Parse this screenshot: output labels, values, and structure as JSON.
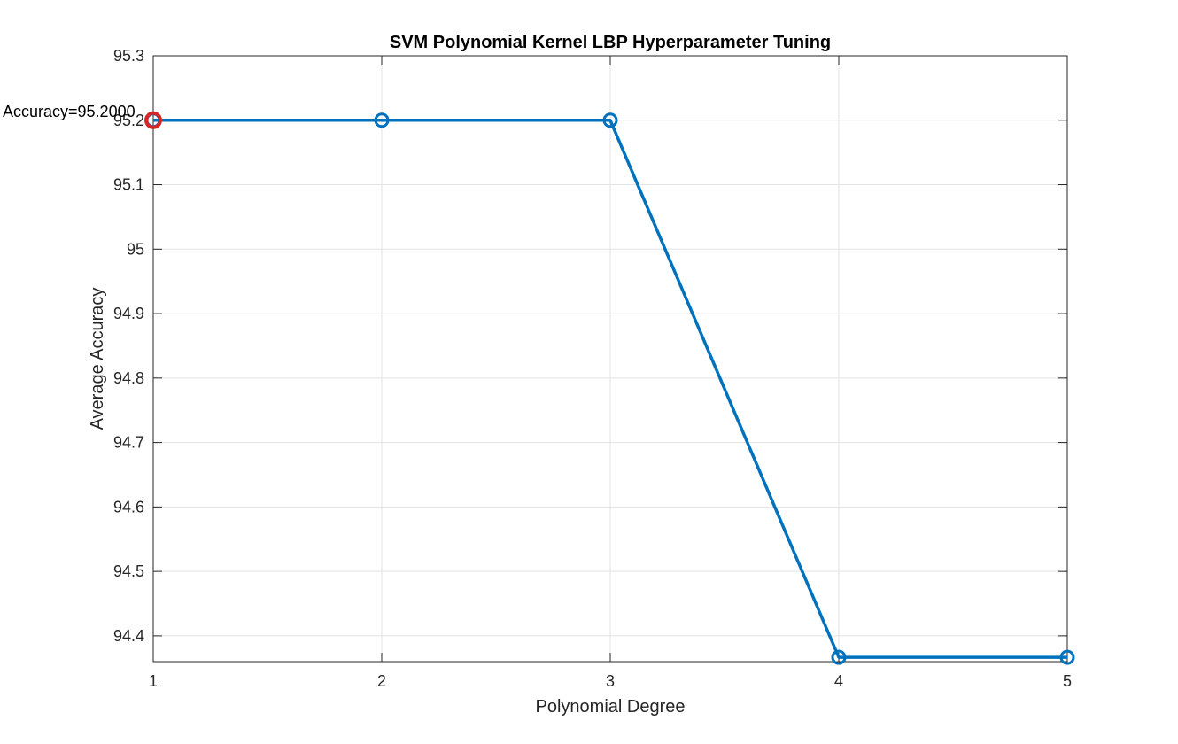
{
  "chart_data": {
    "type": "line",
    "title": "SVM Polynomial Kernel LBP Hyperparameter Tuning",
    "xlabel": "Polynomial Degree",
    "ylabel": "Average Accuracy",
    "x": [
      1,
      2,
      3,
      4,
      5
    ],
    "y": [
      95.2,
      95.2,
      95.2,
      94.3667,
      94.3667
    ],
    "xlim": [
      1,
      5
    ],
    "ylim": [
      94.36,
      95.3
    ],
    "xticks": [
      1,
      2,
      3,
      4,
      5
    ],
    "xtick_labels": [
      "1",
      "2",
      "3",
      "4",
      "5"
    ],
    "yticks": [
      94.4,
      94.5,
      94.6,
      94.7,
      94.8,
      94.9,
      95.0,
      95.1,
      95.2,
      95.3
    ],
    "ytick_labels": [
      "94.4",
      "94.5",
      "94.6",
      "94.7",
      "94.8",
      "94.9",
      "95",
      "95.1",
      "95.2",
      "95.3"
    ],
    "grid": true,
    "marker": "circle",
    "line_color": "#0072BD",
    "highlight": {
      "x": 1,
      "y": 95.2,
      "color": "#D62728",
      "label": "Accuracy=95.2000"
    }
  }
}
